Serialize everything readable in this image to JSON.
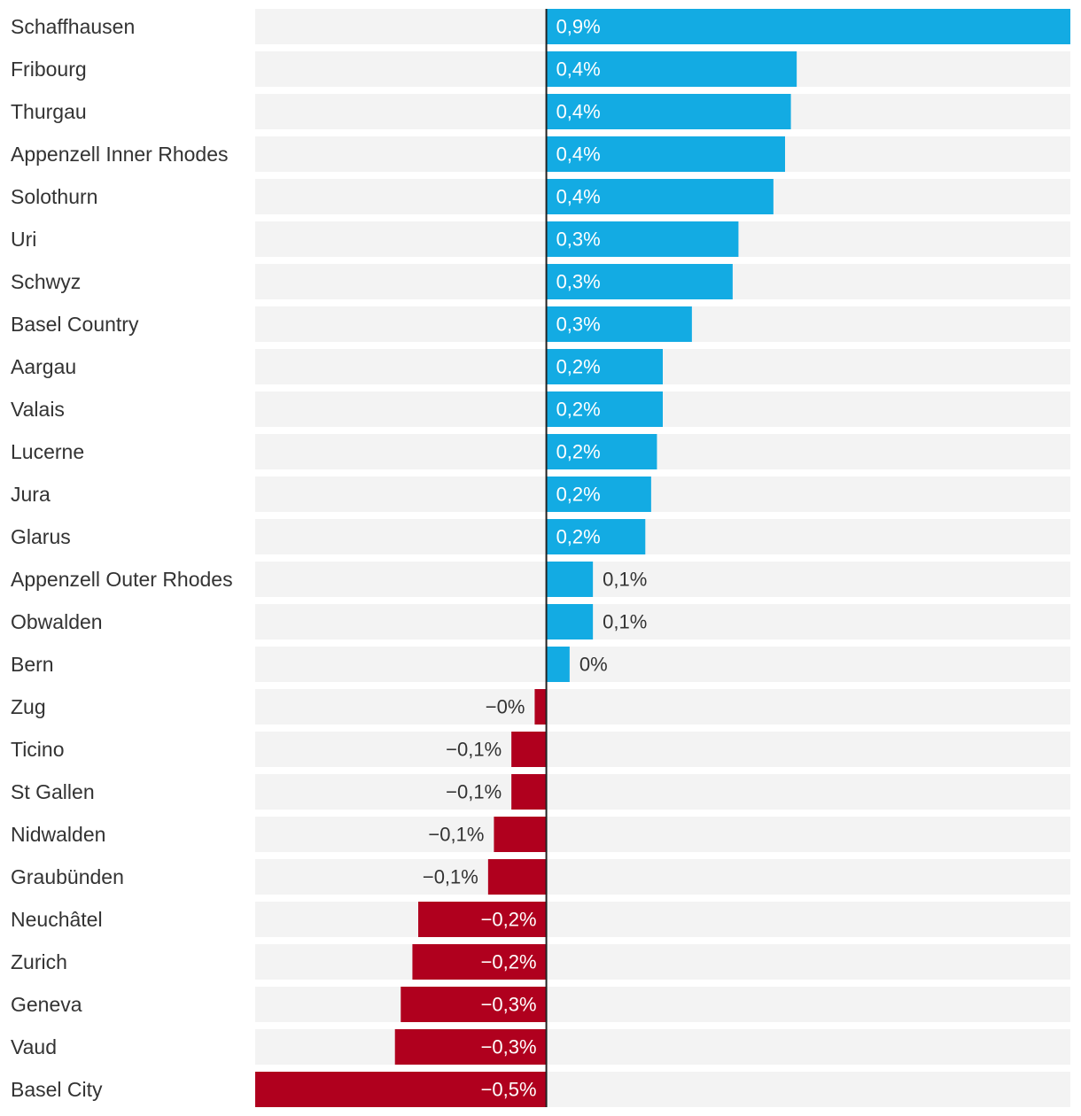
{
  "chart_data": {
    "type": "bar",
    "orientation": "horizontal",
    "title": "",
    "xlabel": "",
    "ylabel": "",
    "xlim": [
      -0.5,
      0.9
    ],
    "grid": false,
    "legend": "none",
    "colors": {
      "positive": "#13abe3",
      "negative": "#b0001e",
      "track": "#f3f3f3",
      "axis": "#222222",
      "label_inside": "#ffffff",
      "label_outside": "#333333",
      "category_text": "#333333"
    },
    "categories": [
      "Schaffhausen",
      "Fribourg",
      "Thurgau",
      "Appenzell Inner Rhodes",
      "Solothurn",
      "Uri",
      "Schwyz",
      "Basel Country",
      "Aargau",
      "Valais",
      "Lucerne",
      "Jura",
      "Glarus",
      "Appenzell Outer Rhodes",
      "Obwalden",
      "Bern",
      "Zug",
      "Ticino",
      "St Gallen",
      "Nidwalden",
      "Graubünden",
      "Neuchâtel",
      "Zurich",
      "Geneva",
      "Vaud",
      "Basel City"
    ],
    "values": [
      0.9,
      0.43,
      0.42,
      0.41,
      0.39,
      0.33,
      0.32,
      0.25,
      0.2,
      0.2,
      0.19,
      0.18,
      0.17,
      0.08,
      0.08,
      0.04,
      -0.02,
      -0.06,
      -0.06,
      -0.09,
      -0.1,
      -0.22,
      -0.23,
      -0.25,
      -0.26,
      -0.5
    ],
    "data_labels": [
      "0,9%",
      "0,4%",
      "0,4%",
      "0,4%",
      "0,4%",
      "0,3%",
      "0,3%",
      "0,3%",
      "0,2%",
      "0,2%",
      "0,2%",
      "0,2%",
      "0,2%",
      "0,1%",
      "0,1%",
      "0%",
      "−0%",
      "−0,1%",
      "−0,1%",
      "−0,1%",
      "−0,1%",
      "−0,2%",
      "−0,2%",
      "−0,3%",
      "−0,3%",
      "−0,5%"
    ]
  }
}
